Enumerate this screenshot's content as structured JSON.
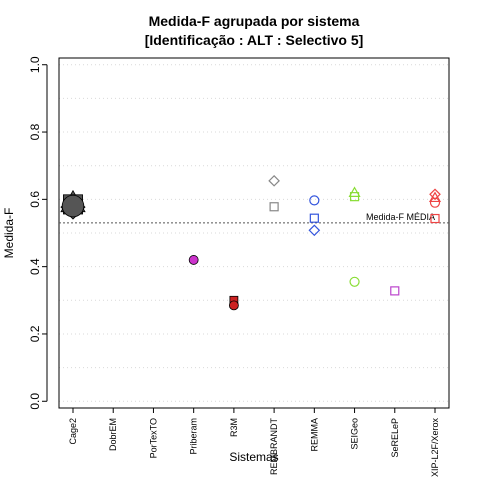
{
  "chart_data": {
    "type": "scatter",
    "title": "Medida-F agrupada por sistema",
    "subtitle": "[Identificação : ALT : Selectivo 5]",
    "xlabel": "Sistemas",
    "ylabel": "Medida-F",
    "ylim": [
      -0.02,
      1.02
    ],
    "yticks": [
      0.0,
      0.2,
      0.4,
      0.6,
      0.8,
      1.0
    ],
    "yticklabels": [
      "0.0",
      "0.2",
      "0.4",
      "0.6",
      "0.8",
      "1.0"
    ],
    "grid": true,
    "categories": [
      "Cage2",
      "DobrEM",
      "PorTexTO",
      "Priberam",
      "R3M",
      "REMBRANDT",
      "REMMA",
      "SEIGeo",
      "SeRELeP",
      "XIP-L2F/Xerox"
    ],
    "reference_line": {
      "value": 0.53,
      "label": "Medida-F MÉDIA"
    },
    "points": [
      {
        "category": "Cage2",
        "y": 0.59,
        "shape": "triangle",
        "color": "#555555",
        "filled": true
      },
      {
        "category": "Cage2",
        "y": 0.577,
        "shape": "diamond",
        "color": "#555555",
        "filled": true
      },
      {
        "category": "Cage2",
        "y": 0.585,
        "shape": "square",
        "color": "#555555",
        "filled": true
      },
      {
        "category": "Cage2",
        "y": 0.58,
        "shape": "circle",
        "color": "#555555",
        "filled": true
      },
      {
        "category": "Priberam",
        "y": 0.42,
        "shape": "circle",
        "color": "#cc33cc",
        "filled": true
      },
      {
        "category": "R3M",
        "y": 0.3,
        "shape": "square",
        "color": "#cc2222",
        "filled": true
      },
      {
        "category": "R3M",
        "y": 0.285,
        "shape": "circle",
        "color": "#cc2222",
        "filled": true
      },
      {
        "category": "REMBRANDT",
        "y": 0.655,
        "shape": "diamond",
        "color": "#888888",
        "filled": false
      },
      {
        "category": "REMBRANDT",
        "y": 0.578,
        "shape": "square",
        "color": "#888888",
        "filled": false
      },
      {
        "category": "REMMA",
        "y": 0.597,
        "shape": "circle",
        "color": "#3355dd",
        "filled": false
      },
      {
        "category": "REMMA",
        "y": 0.544,
        "shape": "square",
        "color": "#3355dd",
        "filled": false
      },
      {
        "category": "REMMA",
        "y": 0.508,
        "shape": "diamond",
        "color": "#3355dd",
        "filled": false
      },
      {
        "category": "SEIGeo",
        "y": 0.62,
        "shape": "triangle",
        "color": "#88dd33",
        "filled": false
      },
      {
        "category": "SEIGeo",
        "y": 0.608,
        "shape": "square",
        "color": "#88dd33",
        "filled": false
      },
      {
        "category": "SEIGeo",
        "y": 0.355,
        "shape": "circle",
        "color": "#88dd33",
        "filled": false
      },
      {
        "category": "SeRELeP",
        "y": 0.328,
        "shape": "square",
        "color": "#bb44cc",
        "filled": false
      },
      {
        "category": "XIP-L2F/Xerox",
        "y": 0.615,
        "shape": "diamond",
        "color": "#ee4444",
        "filled": false
      },
      {
        "category": "XIP-L2F/Xerox",
        "y": 0.605,
        "shape": "triangle",
        "color": "#ee4444",
        "filled": false
      },
      {
        "category": "XIP-L2F/Xerox",
        "y": 0.59,
        "shape": "circle",
        "color": "#ee4444",
        "filled": false
      },
      {
        "category": "XIP-L2F/Xerox",
        "y": 0.543,
        "shape": "square",
        "color": "#ee4444",
        "filled": false
      }
    ]
  }
}
